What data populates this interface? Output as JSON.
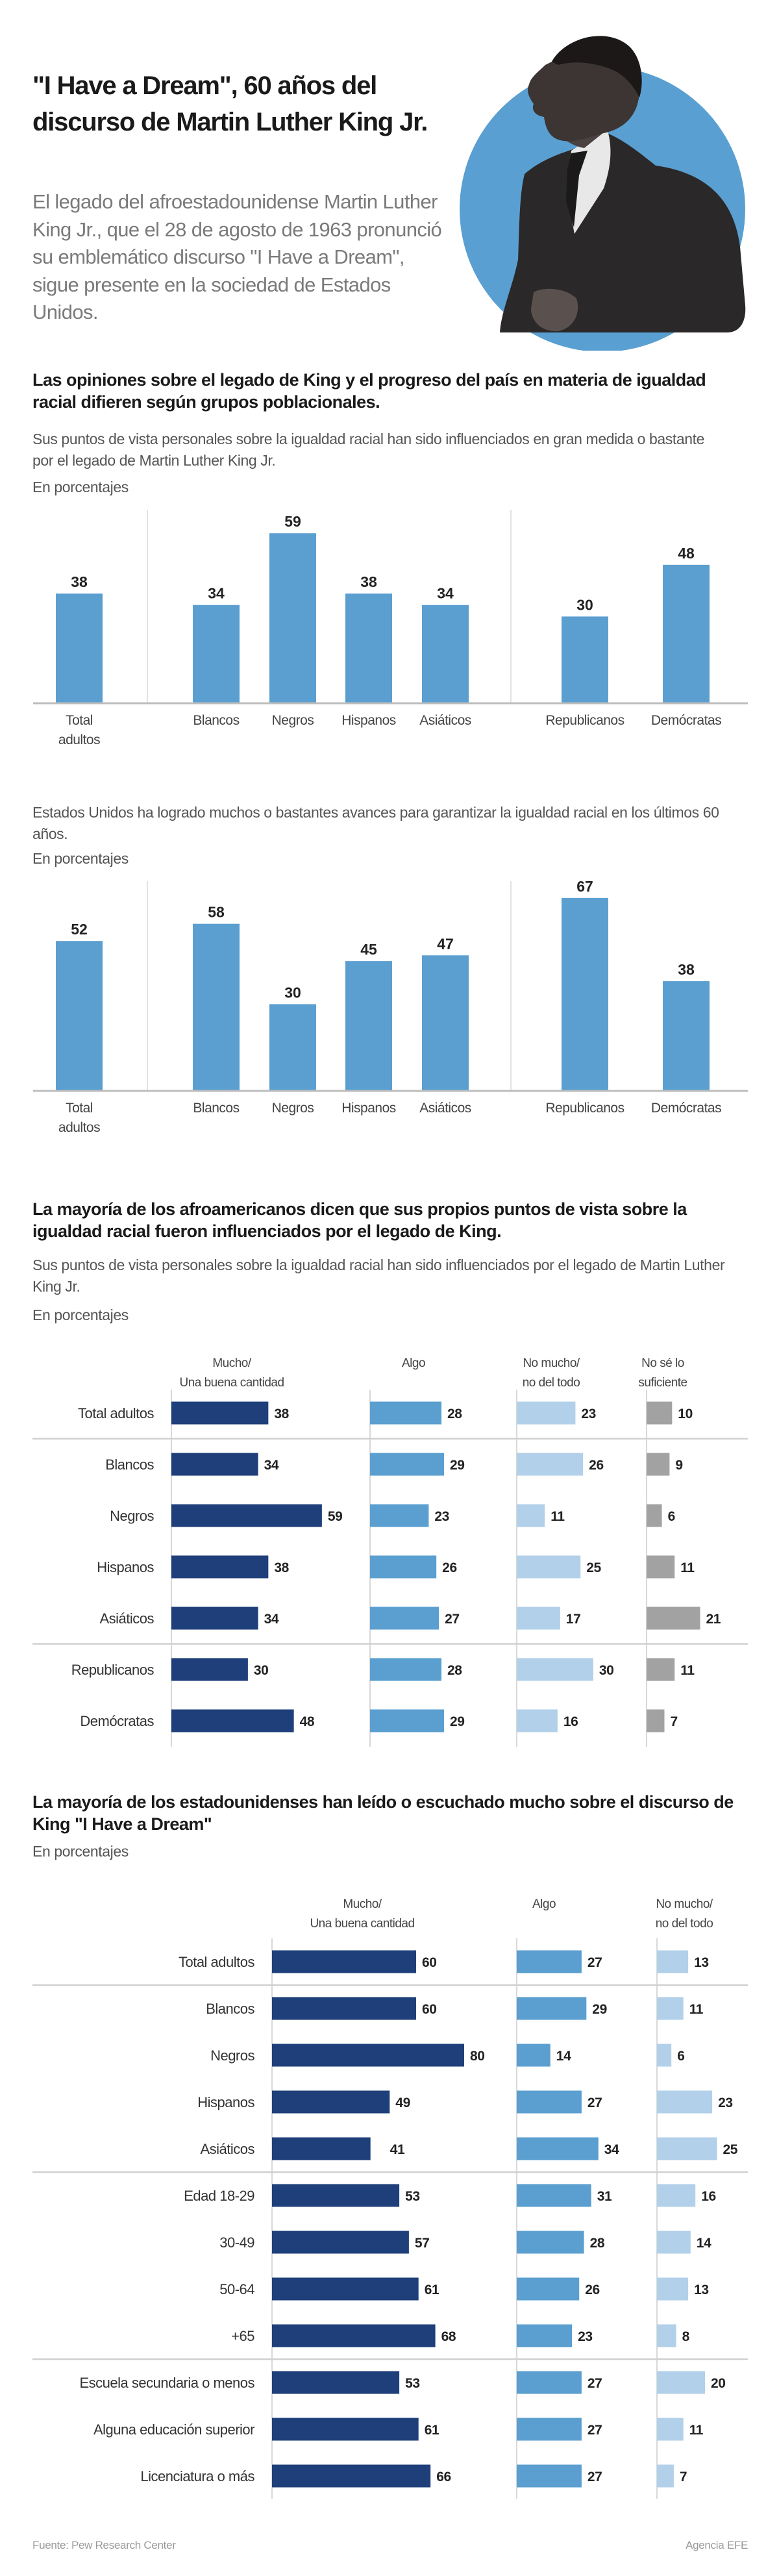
{
  "header": {
    "title_line1": "\"I Have a Dream\", 60 años del",
    "title_line2": "discurso de Martin Luther King Jr.",
    "intro": "El legado del afroestadounidense Martin Luther King Jr., que el 28 de agosto de 1963 pronunció su emblemático discurso \"I Have a Dream\", sigue presente en la sociedad de Estados Unidos.",
    "hero_image": "portrait-of-martin-luther-king-jr",
    "circle_color": "#5a9fd1"
  },
  "colors": {
    "bar": "#5b9fd1",
    "dark_blue": "#1e3f7a",
    "mid_blue": "#5a9fd0",
    "light_blue": "#b2d0e9",
    "gray": "#a2a2a2"
  },
  "section1": {
    "title": "Las opiniones sobre el legado de King y el progreso del país en materia de igualdad racial difieren según grupos poblacionales."
  },
  "footer": {
    "source": "Fuente: Pew Research Center",
    "agency": "Agencia EFE"
  },
  "chart_data": [
    {
      "type": "bar",
      "title": "Sus puntos de vista personales sobre la igualdad racial han sido influenciados en gran medida o bastante por el legado de Martin Luther King Jr.",
      "units": "En porcentajes",
      "categories": [
        "Total adultos",
        "Blancos",
        "Negros",
        "Hispanos",
        "Asiáticos",
        "Republicanos",
        "Demócratas"
      ],
      "category_lines": [
        [
          "Total",
          "adultos"
        ],
        [
          "Blancos"
        ],
        [
          "Negros"
        ],
        [
          "Hispanos"
        ],
        [
          "Asiáticos"
        ],
        [
          "Republicanos"
        ],
        [
          "Demócratas"
        ]
      ],
      "values": [
        38,
        34,
        59,
        38,
        34,
        30,
        48
      ],
      "groups": [
        [
          0
        ],
        [
          1,
          2,
          3,
          4
        ],
        [
          5,
          6
        ]
      ],
      "ylim": [
        0,
        70
      ],
      "grid": false,
      "xlabel": "",
      "ylabel": ""
    },
    {
      "type": "bar",
      "title": "Estados Unidos ha logrado muchos o bastantes avances para garantizar la igualdad racial en los últimos 60 años.",
      "units": "En porcentajes",
      "categories": [
        "Total adultos",
        "Blancos",
        "Negros",
        "Hispanos",
        "Asiáticos",
        "Republicanos",
        "Demócratas"
      ],
      "category_lines": [
        [
          "Total",
          "adultos"
        ],
        [
          "Blancos"
        ],
        [
          "Negros"
        ],
        [
          "Hispanos"
        ],
        [
          "Asiáticos"
        ],
        [
          "Republicanos"
        ],
        [
          "Demócratas"
        ]
      ],
      "values": [
        52,
        58,
        30,
        45,
        47,
        67,
        38
      ],
      "groups": [
        [
          0
        ],
        [
          1,
          2,
          3,
          4
        ],
        [
          5,
          6
        ]
      ],
      "ylim": [
        0,
        70
      ],
      "grid": false,
      "xlabel": "",
      "ylabel": ""
    },
    {
      "type": "bar",
      "orientation": "horizontal",
      "heading": "La mayoría de los afroamericanos dicen que sus propios puntos de vista sobre la igualdad racial fueron influenciados por el legado de King.",
      "title": "Sus puntos de vista personales sobre la igualdad racial han sido influenciados por el legado de Martin Luther King Jr.",
      "units": "En porcentajes",
      "categories": [
        "Total adultos",
        "Blancos",
        "Negros",
        "Hispanos",
        "Asiáticos",
        "Republicanos",
        "Demócratas"
      ],
      "separators_after": [
        0,
        4
      ],
      "series": [
        {
          "name": "Mucho/ Una buena cantidad",
          "name_lines": [
            "Mucho/",
            "Una buena cantidad"
          ],
          "color": "#1e3f7a",
          "values": [
            38,
            34,
            59,
            38,
            34,
            30,
            48
          ]
        },
        {
          "name": "Algo",
          "name_lines": [
            "Algo"
          ],
          "color": "#5a9fd0",
          "values": [
            28,
            29,
            23,
            26,
            27,
            28,
            29
          ]
        },
        {
          "name": "No mucho/ no del todo",
          "name_lines": [
            "No mucho/",
            "no del todo"
          ],
          "color": "#b2d0e9",
          "values": [
            23,
            26,
            11,
            25,
            17,
            30,
            16
          ]
        },
        {
          "name": "No sé lo suficiente",
          "name_lines": [
            "No sé lo",
            "suficiente"
          ],
          "color": "#a2a2a2",
          "values": [
            10,
            9,
            6,
            11,
            21,
            11,
            7
          ]
        }
      ],
      "legend": "top",
      "grid": false
    },
    {
      "type": "bar",
      "orientation": "horizontal",
      "heading": "La mayoría de los estadounidenses han leído o escuchado mucho sobre el discurso de King \"I Have a Dream\"",
      "title": "",
      "units": "En porcentajes",
      "categories": [
        "Total adultos",
        "Blancos",
        "Negros",
        "Hispanos",
        "Asiáticos",
        "Edad 18-29",
        "30-49",
        "50-64",
        "+65",
        "Escuela secundaria o menos",
        "Alguna educación superior",
        "Licenciatura o más"
      ],
      "separators_after": [
        0,
        4,
        8
      ],
      "series": [
        {
          "name": "Mucho/ Una buena cantidad",
          "name_lines": [
            "Mucho/",
            "Una buena cantidad"
          ],
          "color": "#1e3f7a",
          "values": [
            60,
            60,
            80,
            49,
            41,
            53,
            57,
            61,
            68,
            53,
            61,
            66
          ]
        },
        {
          "name": "Algo",
          "name_lines": [
            "Algo"
          ],
          "color": "#5a9fd0",
          "values": [
            27,
            29,
            14,
            27,
            34,
            31,
            28,
            26,
            23,
            27,
            27,
            27
          ]
        },
        {
          "name": "No mucho/ no del todo",
          "name_lines": [
            "No mucho/",
            "no del todo"
          ],
          "color": "#b2d0e9",
          "values": [
            13,
            11,
            6,
            23,
            25,
            16,
            14,
            13,
            8,
            20,
            11,
            7
          ]
        }
      ],
      "legend": "top",
      "grid": false
    }
  ]
}
